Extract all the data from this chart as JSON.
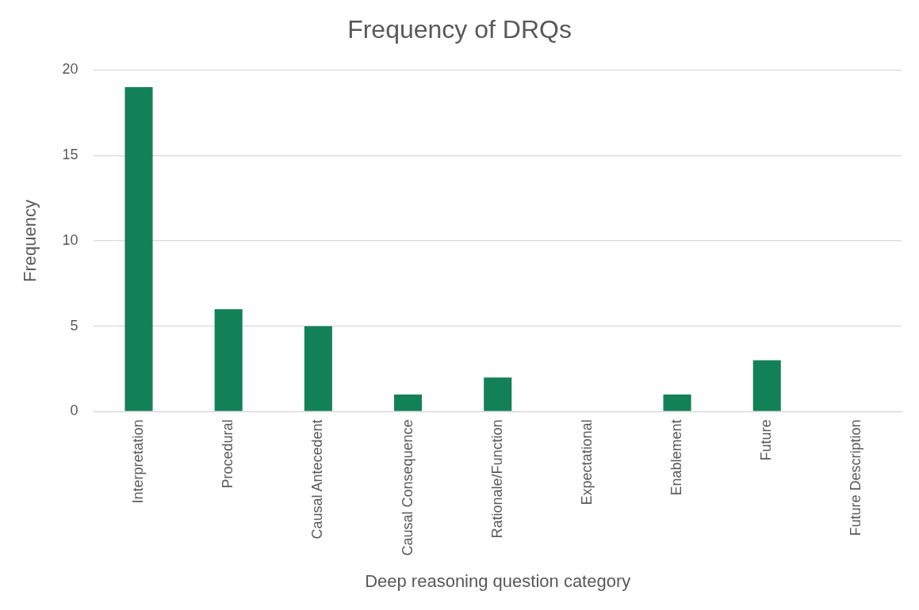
{
  "chart_data": {
    "type": "bar",
    "title": "Frequency of DRQs",
    "xlabel": "Deep reasoning question category",
    "ylabel": "Frequency",
    "categories": [
      "Interpretation",
      "Procedural",
      "Causal Antecedent",
      "Causal Consequence",
      "Rationale/Function",
      "Expectational",
      "Enablement",
      "Future",
      "Future Description"
    ],
    "values": [
      19,
      6,
      5,
      1,
      2,
      0,
      1,
      3,
      0
    ],
    "color": "#138158",
    "ylim": [
      0,
      20
    ],
    "yticks": [
      0,
      5,
      10,
      15,
      20
    ],
    "grid": "y",
    "legend": false
  }
}
